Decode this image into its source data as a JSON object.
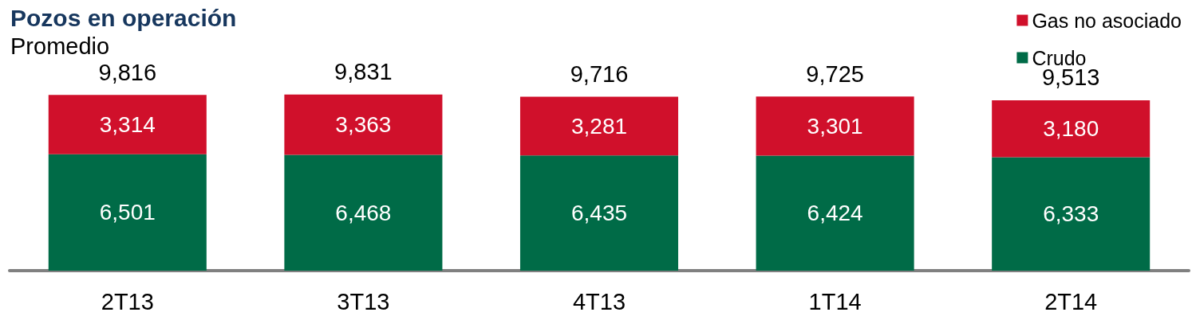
{
  "chart_data": {
    "type": "bar",
    "title": "Pozos en operación",
    "subtitle": "Promedio",
    "categories": [
      "2T13",
      "3T13",
      "4T13",
      "1T14",
      "2T14"
    ],
    "stacked": true,
    "legend": "top right",
    "grid": false,
    "series": [
      {
        "name": "Crudo",
        "color": "#006b47",
        "values": [
          6501,
          6468,
          6435,
          6424,
          6333
        ],
        "value_labels": [
          "6,501",
          "6,468",
          "6,435",
          "6,424",
          "6,333"
        ]
      },
      {
        "name": "Gas no asociado",
        "color": "#d0102b",
        "values": [
          3314,
          3363,
          3281,
          3301,
          3180
        ],
        "value_labels": [
          "3,314",
          "3,363",
          "3,281",
          "3,301",
          "3,180"
        ]
      }
    ],
    "totals": [
      "9,816",
      "9,831",
      "9,716",
      "9,725",
      "9,513"
    ]
  }
}
